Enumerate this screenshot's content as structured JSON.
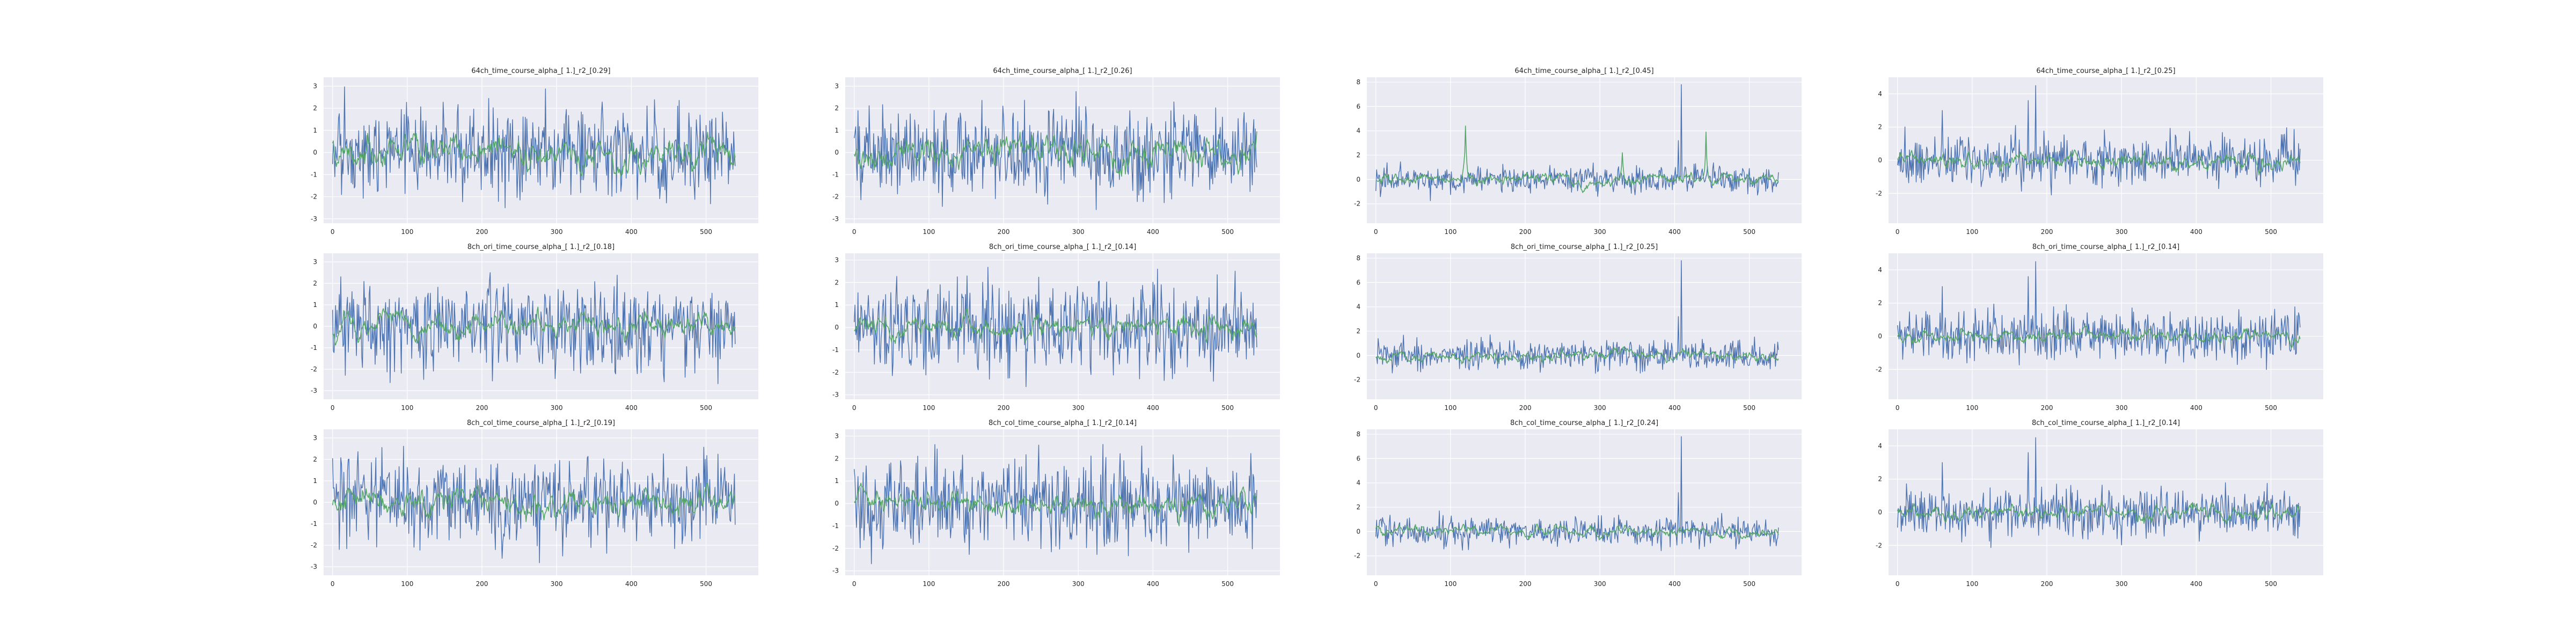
{
  "figure": {
    "background": "#ffffff",
    "plot_background": "#eaeaf2",
    "grid_color": "#ffffff",
    "series_colors": [
      "#4c72b0",
      "#55a868"
    ]
  },
  "chart_data": [
    {
      "type": "line",
      "title": "64ch_time_course_alpha_[ 1.]_r2_[0.29]",
      "xlim": [
        -12,
        570
      ],
      "ylim": [
        -3.2,
        3.4
      ],
      "xticks": [
        0,
        100,
        200,
        300,
        400,
        500
      ],
      "yticks": [
        -3,
        -2,
        -1,
        0,
        1,
        2,
        3
      ],
      "grid": true,
      "series": [
        {
          "length": 540,
          "amplitude": 1.0,
          "min": -3.0,
          "max": 3.1,
          "spikes": []
        },
        {
          "length": 540,
          "amplitude": 0.5,
          "min": -1.2,
          "max": 1.4,
          "spikes": []
        }
      ]
    },
    {
      "type": "line",
      "title": "64ch_time_course_alpha_[ 1.]_r2_[0.26]",
      "xlim": [
        -12,
        570
      ],
      "ylim": [
        -3.2,
        3.4
      ],
      "xticks": [
        0,
        100,
        200,
        300,
        400,
        500
      ],
      "yticks": [
        -3,
        -2,
        -1,
        0,
        1,
        2,
        3
      ],
      "grid": true,
      "series": [
        {
          "length": 540,
          "amplitude": 1.0,
          "min": -3.0,
          "max": 3.0,
          "spikes": []
        },
        {
          "length": 540,
          "amplitude": 0.5,
          "min": -1.2,
          "max": 1.4,
          "spikes": []
        }
      ]
    },
    {
      "type": "line",
      "title": "64ch_time_course_alpha_[ 1.]_r2_[0.45]",
      "xlim": [
        -12,
        570
      ],
      "ylim": [
        -3.6,
        8.4
      ],
      "xticks": [
        0,
        100,
        200,
        300,
        400,
        500
      ],
      "yticks": [
        -2,
        0,
        2,
        4,
        6,
        8
      ],
      "grid": true,
      "series": [
        {
          "length": 540,
          "amplitude": 0.6,
          "min": -2.6,
          "max": 7.8,
          "spikes": [
            [
              409,
              7.8
            ],
            [
              405,
              3.2
            ]
          ]
        },
        {
          "length": 540,
          "amplitude": 0.35,
          "min": -1.8,
          "max": 4.4,
          "spikes": [
            [
              120,
              4.4
            ],
            [
              442,
              3.9
            ],
            [
              330,
              2.2
            ]
          ]
        }
      ]
    },
    {
      "type": "line",
      "title": "64ch_time_course_alpha_[ 1.]_r2_[0.25]",
      "xlim": [
        -12,
        570
      ],
      "ylim": [
        -3.8,
        5.0
      ],
      "xticks": [
        0,
        100,
        200,
        300,
        400,
        500
      ],
      "yticks": [
        -2,
        0,
        2,
        4
      ],
      "grid": true,
      "series": [
        {
          "length": 540,
          "amplitude": 0.75,
          "min": -2.6,
          "max": 4.5,
          "spikes": [
            [
              185,
              4.5
            ],
            [
              175,
              3.6
            ],
            [
              60,
              3.0
            ]
          ]
        },
        {
          "length": 540,
          "amplitude": 0.35,
          "min": -1.0,
          "max": 1.3,
          "spikes": []
        }
      ]
    },
    {
      "type": "line",
      "title": "8ch_ori_time_course_alpha_[ 1.]_r2_[0.18]",
      "xlim": [
        -12,
        570
      ],
      "ylim": [
        -3.4,
        3.4
      ],
      "xticks": [
        0,
        100,
        200,
        300,
        400,
        500
      ],
      "yticks": [
        -3,
        -2,
        -1,
        0,
        1,
        2,
        3
      ],
      "grid": true,
      "series": [
        {
          "length": 540,
          "amplitude": 1.0,
          "min": -3.0,
          "max": 3.1,
          "spikes": []
        },
        {
          "length": 540,
          "amplitude": 0.4,
          "min": -1.3,
          "max": 1.2,
          "spikes": []
        }
      ]
    },
    {
      "type": "line",
      "title": "8ch_ori_time_course_alpha_[ 1.]_r2_[0.14]",
      "xlim": [
        -12,
        570
      ],
      "ylim": [
        -3.2,
        3.3
      ],
      "xticks": [
        0,
        100,
        200,
        300,
        400,
        500
      ],
      "yticks": [
        -3,
        -2,
        -1,
        0,
        1,
        2,
        3
      ],
      "grid": true,
      "series": [
        {
          "length": 540,
          "amplitude": 1.0,
          "min": -3.0,
          "max": 3.0,
          "spikes": []
        },
        {
          "length": 540,
          "amplitude": 0.35,
          "min": -1.0,
          "max": 1.1,
          "spikes": []
        }
      ]
    },
    {
      "type": "line",
      "title": "8ch_ori_time_course_alpha_[ 1.]_r2_[0.25]",
      "xlim": [
        -12,
        570
      ],
      "ylim": [
        -3.6,
        8.4
      ],
      "xticks": [
        0,
        100,
        200,
        300,
        400,
        500
      ],
      "yticks": [
        -2,
        0,
        2,
        4,
        6,
        8
      ],
      "grid": true,
      "series": [
        {
          "length": 540,
          "amplitude": 0.6,
          "min": -2.6,
          "max": 7.8,
          "spikes": [
            [
              409,
              7.8
            ],
            [
              405,
              3.2
            ]
          ]
        },
        {
          "length": 540,
          "amplitude": 0.3,
          "min": -1.0,
          "max": 1.5,
          "spikes": []
        }
      ]
    },
    {
      "type": "line",
      "title": "8ch_ori_time_course_alpha_[ 1.]_r2_[0.14]",
      "xlim": [
        -12,
        570
      ],
      "ylim": [
        -3.8,
        5.0
      ],
      "xticks": [
        0,
        100,
        200,
        300,
        400,
        500
      ],
      "yticks": [
        -2,
        0,
        2,
        4
      ],
      "grid": true,
      "series": [
        {
          "length": 540,
          "amplitude": 0.75,
          "min": -2.6,
          "max": 4.5,
          "spikes": [
            [
              185,
              4.5
            ],
            [
              175,
              3.6
            ],
            [
              60,
              3.0
            ]
          ]
        },
        {
          "length": 540,
          "amplitude": 0.3,
          "min": -0.8,
          "max": 0.9,
          "spikes": []
        }
      ]
    },
    {
      "type": "line",
      "title": "8ch_col_time_course_alpha_[ 1.]_r2_[0.19]",
      "xlim": [
        -12,
        570
      ],
      "ylim": [
        -3.4,
        3.4
      ],
      "xticks": [
        0,
        100,
        200,
        300,
        400,
        500
      ],
      "yticks": [
        -3,
        -2,
        -1,
        0,
        1,
        2,
        3
      ],
      "grid": true,
      "series": [
        {
          "length": 540,
          "amplitude": 1.0,
          "min": -3.0,
          "max": 3.1,
          "spikes": []
        },
        {
          "length": 540,
          "amplitude": 0.45,
          "min": -1.3,
          "max": 1.3,
          "spikes": []
        }
      ]
    },
    {
      "type": "line",
      "title": "8ch_col_time_course_alpha_[ 1.]_r2_[0.14]",
      "xlim": [
        -12,
        570
      ],
      "ylim": [
        -3.2,
        3.3
      ],
      "xticks": [
        0,
        100,
        200,
        300,
        400,
        500
      ],
      "yticks": [
        -3,
        -2,
        -1,
        0,
        1,
        2,
        3
      ],
      "grid": true,
      "series": [
        {
          "length": 540,
          "amplitude": 1.0,
          "min": -3.0,
          "max": 3.0,
          "spikes": []
        },
        {
          "length": 540,
          "amplitude": 0.35,
          "min": -1.0,
          "max": 1.1,
          "spikes": []
        }
      ]
    },
    {
      "type": "line",
      "title": "8ch_col_time_course_alpha_[ 1.]_r2_[0.24]",
      "xlim": [
        -12,
        570
      ],
      "ylim": [
        -3.6,
        8.4
      ],
      "xticks": [
        0,
        100,
        200,
        300,
        400,
        500
      ],
      "yticks": [
        -2,
        0,
        2,
        4,
        6,
        8
      ],
      "grid": true,
      "series": [
        {
          "length": 540,
          "amplitude": 0.6,
          "min": -2.6,
          "max": 7.8,
          "spikes": [
            [
              409,
              7.8
            ],
            [
              405,
              3.2
            ]
          ]
        },
        {
          "length": 540,
          "amplitude": 0.3,
          "min": -1.0,
          "max": 1.5,
          "spikes": []
        }
      ]
    },
    {
      "type": "line",
      "title": "8ch_col_time_course_alpha_[ 1.]_r2_[0.14]",
      "xlim": [
        -12,
        570
      ],
      "ylim": [
        -3.8,
        5.0
      ],
      "xticks": [
        0,
        100,
        200,
        300,
        400,
        500
      ],
      "yticks": [
        -2,
        0,
        2,
        4
      ],
      "grid": true,
      "series": [
        {
          "length": 540,
          "amplitude": 0.75,
          "min": -2.6,
          "max": 4.5,
          "spikes": [
            [
              185,
              4.5
            ],
            [
              175,
              3.6
            ],
            [
              60,
              3.0
            ]
          ]
        },
        {
          "length": 540,
          "amplitude": 0.3,
          "min": -0.8,
          "max": 0.9,
          "spikes": []
        }
      ]
    }
  ]
}
